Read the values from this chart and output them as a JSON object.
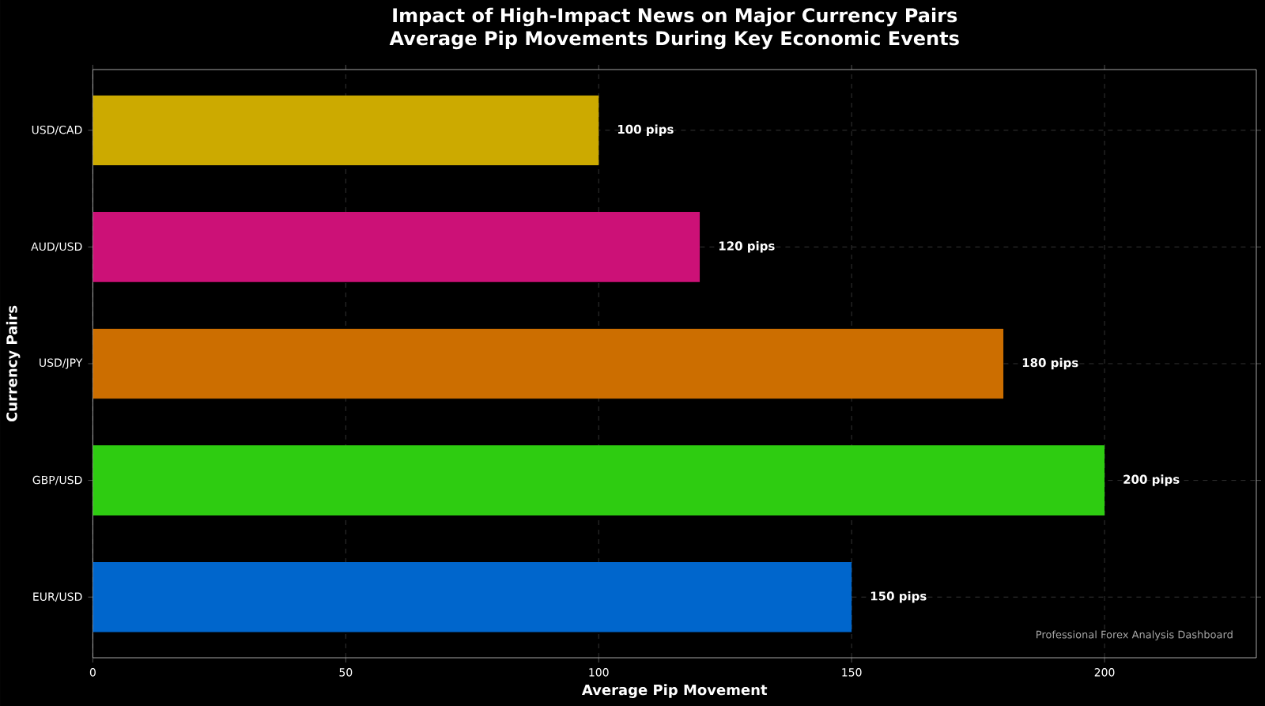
{
  "chart_data": {
    "type": "bar",
    "orientation": "horizontal",
    "title": "Impact of High-Impact News on Major Currency Pairs",
    "subtitle": "Average Pip Movements During Key Economic Events",
    "xlabel": "Average Pip Movement",
    "ylabel": "Currency Pairs",
    "categories": [
      "USD/CAD",
      "AUD/USD",
      "USD/JPY",
      "GBP/USD",
      "EUR/USD"
    ],
    "values": [
      100,
      120,
      180,
      200,
      150
    ],
    "colors": [
      "#ccaa00",
      "#cc1177",
      "#cc6e00",
      "#2ecc11",
      "#0066cc"
    ],
    "value_labels": [
      "100 pips",
      "120 pips",
      "180 pips",
      "200 pips",
      "150 pips"
    ],
    "xlim": [
      0,
      230
    ],
    "xticks": [
      0,
      50,
      100,
      150,
      200
    ],
    "grid": true,
    "annotations": [
      "Professional Forex Analysis Dashboard"
    ]
  }
}
